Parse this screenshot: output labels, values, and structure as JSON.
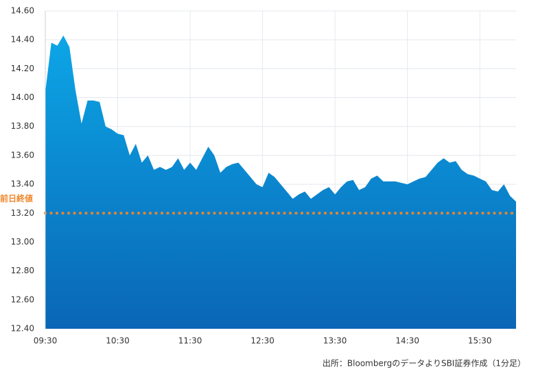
{
  "chart_data": {
    "type": "area",
    "color": "#0ca6e6",
    "color_bottom": "#0a66b6",
    "x": [
      "09:30",
      "09:35",
      "09:40",
      "09:45",
      "09:50",
      "09:55",
      "10:00",
      "10:05",
      "10:10",
      "10:15",
      "10:20",
      "10:25",
      "10:30",
      "10:35",
      "10:40",
      "10:45",
      "10:50",
      "10:55",
      "11:00",
      "11:05",
      "11:10",
      "11:15",
      "11:20",
      "11:25",
      "11:30",
      "11:35",
      "11:40",
      "11:45",
      "11:50",
      "11:55",
      "12:00",
      "12:05",
      "12:10",
      "12:15",
      "12:20",
      "12:25",
      "12:30",
      "12:35",
      "12:40",
      "12:45",
      "12:50",
      "12:55",
      "13:00",
      "13:05",
      "13:10",
      "13:15",
      "13:20",
      "13:25",
      "13:30",
      "13:35",
      "13:40",
      "13:45",
      "13:50",
      "13:55",
      "14:00",
      "14:05",
      "14:10",
      "14:15",
      "14:20",
      "14:25",
      "14:30",
      "14:35",
      "14:40",
      "14:45",
      "14:50",
      "14:55",
      "15:00",
      "15:05",
      "15:10",
      "15:15",
      "15:20",
      "15:25",
      "15:30",
      "15:35",
      "15:40",
      "15:45",
      "15:50",
      "15:55",
      "16:00"
    ],
    "values": [
      14.04,
      14.38,
      14.36,
      14.43,
      14.35,
      14.05,
      13.82,
      13.98,
      13.98,
      13.97,
      13.8,
      13.78,
      13.75,
      13.74,
      13.6,
      13.68,
      13.55,
      13.6,
      13.5,
      13.52,
      13.5,
      13.52,
      13.58,
      13.5,
      13.55,
      13.5,
      13.58,
      13.66,
      13.6,
      13.48,
      13.52,
      13.54,
      13.55,
      13.5,
      13.45,
      13.4,
      13.38,
      13.48,
      13.45,
      13.4,
      13.35,
      13.3,
      13.33,
      13.35,
      13.3,
      13.33,
      13.36,
      13.38,
      13.33,
      13.38,
      13.42,
      13.43,
      13.36,
      13.38,
      13.44,
      13.46,
      13.42,
      13.42,
      13.42,
      13.41,
      13.4,
      13.42,
      13.44,
      13.45,
      13.5,
      13.55,
      13.58,
      13.55,
      13.56,
      13.5,
      13.47,
      13.46,
      13.44,
      13.42,
      13.36,
      13.35,
      13.4,
      13.32,
      13.28
    ],
    "xlim": [
      "09:30",
      "16:00"
    ],
    "xticks": [
      "09:30",
      "10:30",
      "11:30",
      "12:30",
      "13:30",
      "14:30",
      "15:30"
    ],
    "ylim": [
      12.4,
      14.6
    ],
    "yticks": [
      {
        "value": 12.4,
        "label": "12.40"
      },
      {
        "value": 12.6,
        "label": "12.60"
      },
      {
        "value": 12.8,
        "label": "12.80"
      },
      {
        "value": 13,
        "label": "13.00"
      },
      {
        "value": 13.2,
        "label": "13.20"
      },
      {
        "value": 13.4,
        "label": "13.40"
      },
      {
        "value": 13.6,
        "label": "13.60"
      },
      {
        "value": 13.8,
        "label": "13.80"
      },
      {
        "value": 14,
        "label": "14.00"
      },
      {
        "value": 14.2,
        "label": "14.20"
      },
      {
        "value": 14.4,
        "label": "14.40"
      },
      {
        "value": 14.6,
        "label": "14.60"
      }
    ],
    "grid": true,
    "reference": {
      "value": 13.2,
      "label": "前日終値",
      "color": "#f0862a"
    },
    "source": "出所：BloombergのデータよりSBI証券作成（1分足）"
  }
}
